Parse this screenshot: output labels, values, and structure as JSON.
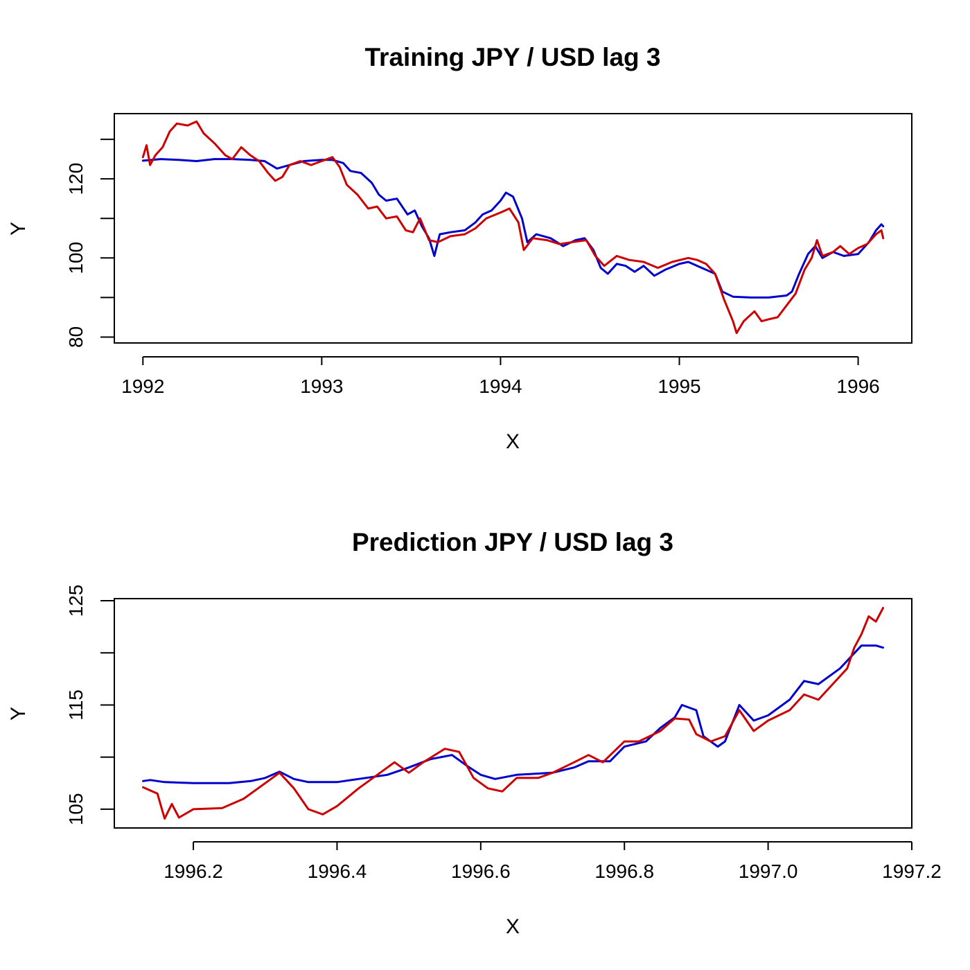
{
  "chart_data": [
    {
      "type": "line",
      "title": "Training  JPY / USD lag 3",
      "xlabel": "X",
      "ylabel": "Y",
      "xlim": [
        1991.84,
        1996.3
      ],
      "ylim": [
        78.5,
        136.5
      ],
      "xticks": [
        1992,
        1993,
        1994,
        1995,
        1996
      ],
      "xtick_labels": [
        "1992",
        "1993",
        "1994",
        "1995",
        "1996"
      ],
      "yticks": [
        80,
        90,
        100,
        110,
        120,
        130
      ],
      "ytick_labels": [
        "80",
        "",
        "100",
        "",
        "120",
        ""
      ],
      "grid": false,
      "series": [
        {
          "color": "#0000cc",
          "points": [
            [
              1992.0,
              124.6
            ],
            [
              1992.1,
              125.0
            ],
            [
              1992.2,
              124.8
            ],
            [
              1992.3,
              124.5
            ],
            [
              1992.4,
              125.0
            ],
            [
              1992.5,
              125.0
            ],
            [
              1992.6,
              124.8
            ],
            [
              1992.68,
              124.5
            ],
            [
              1992.75,
              122.6
            ],
            [
              1992.82,
              123.5
            ],
            [
              1992.9,
              124.5
            ],
            [
              1993.0,
              124.8
            ],
            [
              1993.06,
              124.8
            ],
            [
              1993.12,
              124.0
            ],
            [
              1993.16,
              122.0
            ],
            [
              1993.22,
              121.5
            ],
            [
              1993.28,
              119.0
            ],
            [
              1993.32,
              116.0
            ],
            [
              1993.36,
              114.5
            ],
            [
              1993.42,
              115.0
            ],
            [
              1993.48,
              111.0
            ],
            [
              1993.52,
              112.0
            ],
            [
              1993.56,
              108.0
            ],
            [
              1993.6,
              105.0
            ],
            [
              1993.63,
              100.5
            ],
            [
              1993.66,
              106.0
            ],
            [
              1993.72,
              106.5
            ],
            [
              1993.8,
              107.0
            ],
            [
              1993.86,
              109.0
            ],
            [
              1993.9,
              111.0
            ],
            [
              1993.95,
              112.0
            ],
            [
              1994.0,
              114.5
            ],
            [
              1994.03,
              116.5
            ],
            [
              1994.07,
              115.5
            ],
            [
              1994.12,
              110.0
            ],
            [
              1994.15,
              104.0
            ],
            [
              1994.2,
              106.0
            ],
            [
              1994.28,
              105.0
            ],
            [
              1994.35,
              103.0
            ],
            [
              1994.42,
              104.5
            ],
            [
              1994.47,
              105.0
            ],
            [
              1994.52,
              102.0
            ],
            [
              1994.56,
              97.5
            ],
            [
              1994.6,
              96.0
            ],
            [
              1994.65,
              98.5
            ],
            [
              1994.7,
              98.0
            ],
            [
              1994.75,
              96.5
            ],
            [
              1994.8,
              98.0
            ],
            [
              1994.86,
              95.5
            ],
            [
              1994.92,
              97.0
            ],
            [
              1995.0,
              98.5
            ],
            [
              1995.05,
              99.0
            ],
            [
              1995.1,
              98.0
            ],
            [
              1995.15,
              97.0
            ],
            [
              1995.2,
              96.0
            ],
            [
              1995.24,
              91.5
            ],
            [
              1995.3,
              90.2
            ],
            [
              1995.4,
              90.0
            ],
            [
              1995.5,
              90.0
            ],
            [
              1995.6,
              90.5
            ],
            [
              1995.63,
              91.5
            ],
            [
              1995.67,
              96.0
            ],
            [
              1995.72,
              101.0
            ],
            [
              1995.76,
              103.0
            ],
            [
              1995.8,
              100.0
            ],
            [
              1995.86,
              101.5
            ],
            [
              1995.92,
              100.5
            ],
            [
              1996.0,
              101.0
            ],
            [
              1996.06,
              104.0
            ],
            [
              1996.1,
              107.0
            ],
            [
              1996.13,
              108.5
            ],
            [
              1996.14,
              108.0
            ]
          ]
        },
        {
          "color": "#cc0000",
          "points": [
            [
              1992.0,
              125.5
            ],
            [
              1992.02,
              128.5
            ],
            [
              1992.04,
              123.5
            ],
            [
              1992.07,
              126.0
            ],
            [
              1992.11,
              128.0
            ],
            [
              1992.15,
              132.0
            ],
            [
              1992.19,
              134.0
            ],
            [
              1992.25,
              133.5
            ],
            [
              1992.3,
              134.5
            ],
            [
              1992.34,
              131.5
            ],
            [
              1992.4,
              129.0
            ],
            [
              1992.46,
              126.0
            ],
            [
              1992.5,
              125.0
            ],
            [
              1992.55,
              128.0
            ],
            [
              1992.6,
              126.0
            ],
            [
              1992.65,
              124.5
            ],
            [
              1992.7,
              121.5
            ],
            [
              1992.74,
              119.5
            ],
            [
              1992.78,
              120.5
            ],
            [
              1992.82,
              123.5
            ],
            [
              1992.88,
              124.5
            ],
            [
              1992.94,
              123.5
            ],
            [
              1993.0,
              124.5
            ],
            [
              1993.06,
              125.5
            ],
            [
              1993.1,
              123.0
            ],
            [
              1993.14,
              118.5
            ],
            [
              1993.2,
              116.0
            ],
            [
              1993.26,
              112.5
            ],
            [
              1993.31,
              113.0
            ],
            [
              1993.36,
              110.0
            ],
            [
              1993.42,
              110.5
            ],
            [
              1993.47,
              107.0
            ],
            [
              1993.51,
              106.5
            ],
            [
              1993.55,
              110.0
            ],
            [
              1993.6,
              104.5
            ],
            [
              1993.65,
              104.0
            ],
            [
              1993.72,
              105.5
            ],
            [
              1993.8,
              106.0
            ],
            [
              1993.86,
              107.5
            ],
            [
              1993.92,
              110.0
            ],
            [
              1994.0,
              111.5
            ],
            [
              1994.05,
              112.5
            ],
            [
              1994.1,
              109.0
            ],
            [
              1994.13,
              102.0
            ],
            [
              1994.18,
              105.0
            ],
            [
              1994.26,
              104.5
            ],
            [
              1994.33,
              103.5
            ],
            [
              1994.4,
              104.0
            ],
            [
              1994.48,
              104.5
            ],
            [
              1994.53,
              100.5
            ],
            [
              1994.58,
              98.0
            ],
            [
              1994.65,
              100.5
            ],
            [
              1994.72,
              99.5
            ],
            [
              1994.8,
              99.0
            ],
            [
              1994.88,
              97.5
            ],
            [
              1994.96,
              99.0
            ],
            [
              1995.05,
              100.0
            ],
            [
              1995.1,
              99.5
            ],
            [
              1995.15,
              98.5
            ],
            [
              1995.2,
              96.0
            ],
            [
              1995.25,
              89.5
            ],
            [
              1995.3,
              84.0
            ],
            [
              1995.32,
              81.0
            ],
            [
              1995.36,
              84.0
            ],
            [
              1995.42,
              86.5
            ],
            [
              1995.46,
              84.0
            ],
            [
              1995.5,
              84.5
            ],
            [
              1995.55,
              85.0
            ],
            [
              1995.6,
              88.0
            ],
            [
              1995.65,
              91.0
            ],
            [
              1995.7,
              97.0
            ],
            [
              1995.74,
              100.0
            ],
            [
              1995.77,
              104.5
            ],
            [
              1995.8,
              100.5
            ],
            [
              1995.86,
              101.5
            ],
            [
              1995.9,
              103.0
            ],
            [
              1995.95,
              101.0
            ],
            [
              1996.0,
              102.5
            ],
            [
              1996.05,
              103.5
            ],
            [
              1996.1,
              106.0
            ],
            [
              1996.13,
              107.0
            ],
            [
              1996.14,
              105.0
            ]
          ]
        }
      ]
    },
    {
      "type": "line",
      "title": "Prediction JPY / USD lag 3",
      "xlabel": "X",
      "ylabel": "Y",
      "xlim": [
        1996.09,
        1997.2
      ],
      "ylim": [
        103.2,
        125.2
      ],
      "xticks": [
        1996.2,
        1996.4,
        1996.6,
        1996.8,
        1997.0,
        1997.2
      ],
      "xtick_labels": [
        "1996.2",
        "1996.4",
        "1996.6",
        "1996.8",
        "1997.0",
        "1997.2"
      ],
      "yticks": [
        105,
        110,
        115,
        120,
        125
      ],
      "ytick_labels": [
        "105",
        "",
        "115",
        "",
        "125"
      ],
      "grid": false,
      "series": [
        {
          "color": "#0000cc",
          "points": [
            [
              1996.13,
              107.7
            ],
            [
              1996.14,
              107.8
            ],
            [
              1996.16,
              107.6
            ],
            [
              1996.2,
              107.5
            ],
            [
              1996.25,
              107.5
            ],
            [
              1996.28,
              107.7
            ],
            [
              1996.3,
              108.0
            ],
            [
              1996.32,
              108.6
            ],
            [
              1996.34,
              107.9
            ],
            [
              1996.36,
              107.6
            ],
            [
              1996.4,
              107.6
            ],
            [
              1996.43,
              107.9
            ],
            [
              1996.47,
              108.3
            ],
            [
              1996.5,
              109.0
            ],
            [
              1996.53,
              109.8
            ],
            [
              1996.56,
              110.2
            ],
            [
              1996.58,
              109.2
            ],
            [
              1996.6,
              108.3
            ],
            [
              1996.62,
              107.9
            ],
            [
              1996.65,
              108.3
            ],
            [
              1996.7,
              108.5
            ],
            [
              1996.73,
              109.0
            ],
            [
              1996.75,
              109.6
            ],
            [
              1996.78,
              109.6
            ],
            [
              1996.8,
              111.0
            ],
            [
              1996.83,
              111.5
            ],
            [
              1996.85,
              112.8
            ],
            [
              1996.87,
              113.8
            ],
            [
              1996.88,
              115.0
            ],
            [
              1996.9,
              114.5
            ],
            [
              1996.91,
              112.0
            ],
            [
              1996.93,
              111.0
            ],
            [
              1996.94,
              111.5
            ],
            [
              1996.96,
              115.0
            ],
            [
              1996.98,
              113.5
            ],
            [
              1997.0,
              114.0
            ],
            [
              1997.03,
              115.5
            ],
            [
              1997.05,
              117.3
            ],
            [
              1997.07,
              117.0
            ],
            [
              1997.1,
              118.5
            ],
            [
              1997.13,
              120.7
            ],
            [
              1997.15,
              120.7
            ],
            [
              1997.16,
              120.5
            ]
          ]
        },
        {
          "color": "#cc0000",
          "points": [
            [
              1996.13,
              107.1
            ],
            [
              1996.15,
              106.5
            ],
            [
              1996.16,
              104.1
            ],
            [
              1996.17,
              105.5
            ],
            [
              1996.18,
              104.2
            ],
            [
              1996.2,
              105.0
            ],
            [
              1996.24,
              105.1
            ],
            [
              1996.27,
              106.0
            ],
            [
              1996.3,
              107.5
            ],
            [
              1996.32,
              108.5
            ],
            [
              1996.34,
              107.0
            ],
            [
              1996.36,
              105.0
            ],
            [
              1996.38,
              104.5
            ],
            [
              1996.4,
              105.3
            ],
            [
              1996.43,
              107.0
            ],
            [
              1996.46,
              108.5
            ],
            [
              1996.48,
              109.5
            ],
            [
              1996.5,
              108.5
            ],
            [
              1996.52,
              109.5
            ],
            [
              1996.55,
              110.8
            ],
            [
              1996.57,
              110.5
            ],
            [
              1996.59,
              108.0
            ],
            [
              1996.61,
              107.0
            ],
            [
              1996.63,
              106.7
            ],
            [
              1996.65,
              108.0
            ],
            [
              1996.68,
              108.0
            ],
            [
              1996.7,
              108.5
            ],
            [
              1996.73,
              109.5
            ],
            [
              1996.75,
              110.2
            ],
            [
              1996.77,
              109.5
            ],
            [
              1996.8,
              111.5
            ],
            [
              1996.82,
              111.5
            ],
            [
              1996.85,
              112.5
            ],
            [
              1996.87,
              113.7
            ],
            [
              1996.89,
              113.6
            ],
            [
              1996.9,
              112.2
            ],
            [
              1996.92,
              111.5
            ],
            [
              1996.94,
              112.0
            ],
            [
              1996.96,
              114.5
            ],
            [
              1996.98,
              112.5
            ],
            [
              1997.0,
              113.5
            ],
            [
              1997.03,
              114.5
            ],
            [
              1997.05,
              116.0
            ],
            [
              1997.07,
              115.5
            ],
            [
              1997.09,
              117.0
            ],
            [
              1997.11,
              118.5
            ],
            [
              1997.12,
              120.5
            ],
            [
              1997.13,
              121.8
            ],
            [
              1997.14,
              123.5
            ],
            [
              1997.15,
              123.0
            ],
            [
              1997.16,
              124.3
            ]
          ]
        }
      ]
    }
  ]
}
